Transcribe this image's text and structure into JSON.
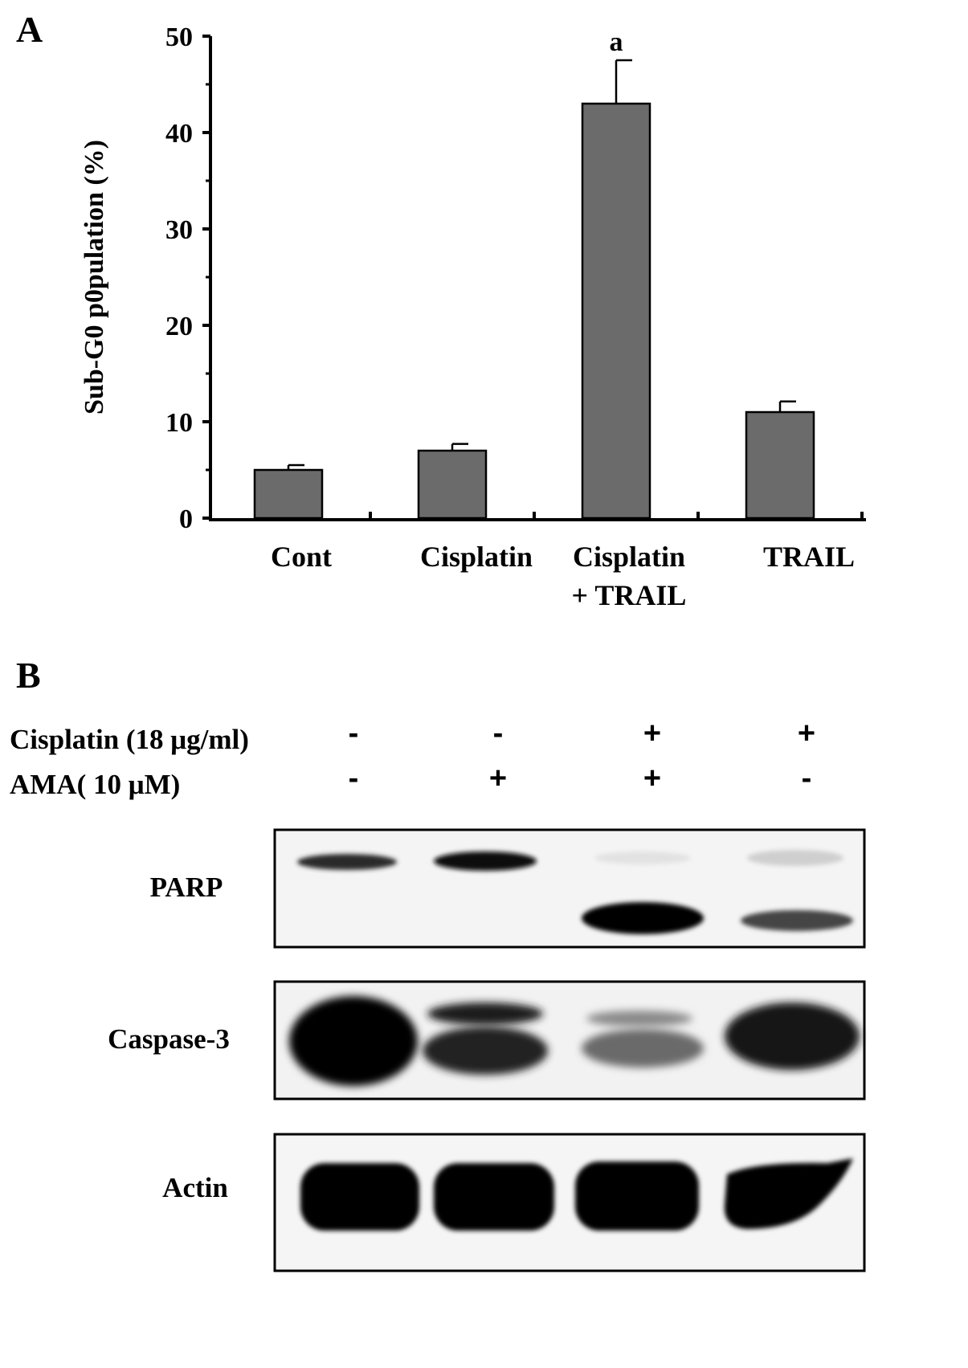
{
  "panel_a": {
    "letter": "A"
  },
  "panel_b": {
    "letter": "B"
  },
  "chart_data": {
    "type": "bar",
    "title": "",
    "xlabel": "",
    "ylabel": "Sub-G0 p0pulation (%)",
    "ylim": [
      0,
      50
    ],
    "yticks": [
      0,
      10,
      20,
      30,
      40,
      50
    ],
    "categories": [
      "Cont",
      "Cisplatin",
      "Cisplatin\n+ TRAIL",
      "TRAIL"
    ],
    "values": [
      5.0,
      7.0,
      43.0,
      11.0
    ],
    "errors": [
      0.5,
      0.7,
      4.5,
      1.1
    ],
    "annotations": [
      {
        "category_index": 2,
        "text": "a"
      }
    ],
    "bar_color": "#6b6b6b",
    "grid": false,
    "legend": "none"
  },
  "western_blot": {
    "treatments": [
      {
        "label": "Cisplatin (18 μg/ml)",
        "signs": [
          "-",
          "-",
          "+",
          "+"
        ]
      },
      {
        "label": "AMA( 10 μM)",
        "signs": [
          "-",
          "+",
          "+",
          "-"
        ]
      }
    ],
    "blots": [
      {
        "label": "PARP"
      },
      {
        "label": "Caspase-3"
      },
      {
        "label": "Actin"
      }
    ],
    "lanes": 4
  }
}
